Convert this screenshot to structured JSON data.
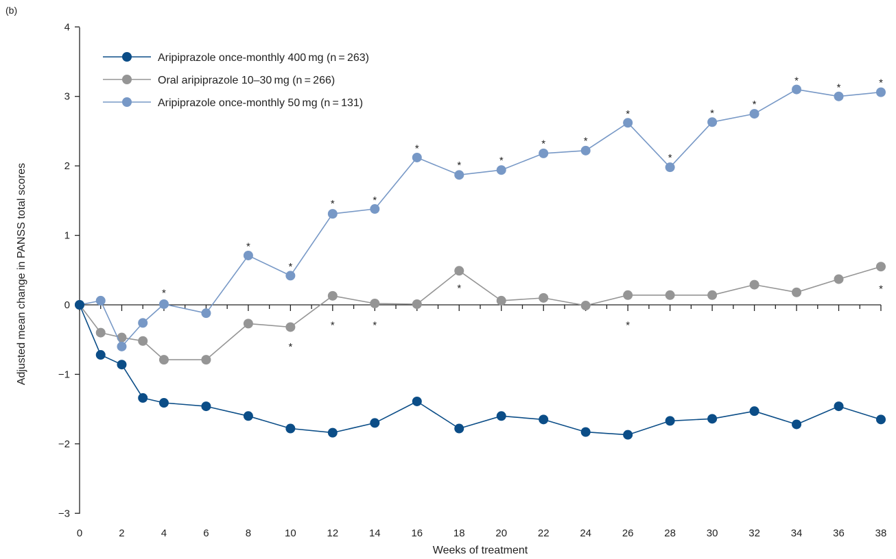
{
  "panel_label": "(b)",
  "chart_data": {
    "type": "line",
    "title": "",
    "xlabel": "Weeks of treatment",
    "ylabel": "Adjusted mean change in PANSS total scores",
    "xlim": [
      0,
      38
    ],
    "ylim": [
      -3,
      4
    ],
    "x_ticks": [
      0,
      2,
      4,
      6,
      8,
      10,
      12,
      14,
      16,
      18,
      20,
      22,
      24,
      26,
      28,
      30,
      32,
      34,
      36,
      38
    ],
    "x_tick_labels": [
      "0",
      "2",
      "4",
      "6",
      "8",
      "10",
      "12",
      "14",
      "16",
      "18",
      "20",
      "22",
      "24",
      "26",
      "28",
      "30",
      "32",
      "34",
      "36",
      "38"
    ],
    "y_ticks": [
      -3,
      -2,
      -1,
      0,
      1,
      2,
      3,
      4
    ],
    "y_tick_labels": [
      "−3",
      "−2",
      "−1",
      "0",
      "1",
      "2",
      "3",
      "4"
    ],
    "grid": false,
    "legend_position": "top-left",
    "significance_marker": "*",
    "series": [
      {
        "name": "Aripiprazole once-monthly 400 mg (n = 263)",
        "color": "#0b4d87",
        "x": [
          0,
          1,
          2,
          3,
          4,
          6,
          8,
          10,
          12,
          14,
          16,
          18,
          20,
          22,
          24,
          26,
          28,
          30,
          32,
          34,
          36,
          38
        ],
        "y": [
          0,
          -0.72,
          -0.86,
          -1.34,
          -1.41,
          -1.46,
          -1.6,
          -1.78,
          -1.84,
          -1.7,
          -1.39,
          -1.78,
          -1.6,
          -1.65,
          -1.83,
          -1.87,
          -1.67,
          -1.64,
          -1.53,
          -1.72,
          -1.46,
          -1.65
        ],
        "significance": []
      },
      {
        "name": "Oral aripiprazole 10–30 mg (n = 266)",
        "color": "#959595",
        "x": [
          0,
          1,
          2,
          3,
          4,
          6,
          8,
          10,
          12,
          14,
          16,
          18,
          20,
          22,
          24,
          26,
          28,
          30,
          32,
          34,
          36,
          38
        ],
        "y": [
          0,
          -0.4,
          -0.47,
          -0.52,
          -0.79,
          -0.79,
          -0.27,
          -0.32,
          0.13,
          0.02,
          0.01,
          0.49,
          0.06,
          0.1,
          -0.01,
          0.14,
          0.14,
          0.14,
          0.29,
          0.18,
          0.37,
          0.55
        ],
        "significance": [
          {
            "x": 10,
            "y": -0.56
          },
          {
            "x": 18,
            "y": 0.28
          },
          {
            "x": 38,
            "y": 0.27
          }
        ]
      },
      {
        "name": "Aripiprazole once-monthly 50 mg (n = 131)",
        "color": "#7798c6",
        "x": [
          0,
          1,
          2,
          3,
          4,
          6,
          8,
          10,
          12,
          14,
          16,
          18,
          20,
          22,
          24,
          26,
          28,
          30,
          32,
          34,
          36,
          38
        ],
        "y": [
          0,
          0.06,
          -0.6,
          -0.26,
          0.01,
          -0.12,
          0.71,
          0.42,
          1.31,
          1.38,
          2.12,
          1.87,
          1.94,
          2.18,
          2.22,
          2.62,
          1.98,
          2.63,
          2.75,
          3.1,
          3.0,
          3.06
        ],
        "significance": [
          {
            "x": 4,
            "y": 0.21
          },
          {
            "x": 8,
            "y": 0.88
          },
          {
            "x": 10,
            "y": 0.59
          },
          {
            "x": 12,
            "y": 1.5
          },
          {
            "x": 14,
            "y": 1.55
          },
          {
            "x": 16,
            "y": 2.29
          },
          {
            "x": 18,
            "y": 2.05
          },
          {
            "x": 20,
            "y": 2.12
          },
          {
            "x": 22,
            "y": 2.36
          },
          {
            "x": 24,
            "y": 2.4
          },
          {
            "x": 26,
            "y": 2.79
          },
          {
            "x": 28,
            "y": 2.16
          },
          {
            "x": 30,
            "y": 2.8
          },
          {
            "x": 32,
            "y": 2.93
          },
          {
            "x": 34,
            "y": 3.27
          },
          {
            "x": 36,
            "y": 3.17
          },
          {
            "x": 38,
            "y": 3.24
          },
          {
            "x": 12,
            "y": -0.25
          },
          {
            "x": 14,
            "y": -0.25
          },
          {
            "x": 26,
            "y": -0.25
          }
        ]
      }
    ]
  }
}
